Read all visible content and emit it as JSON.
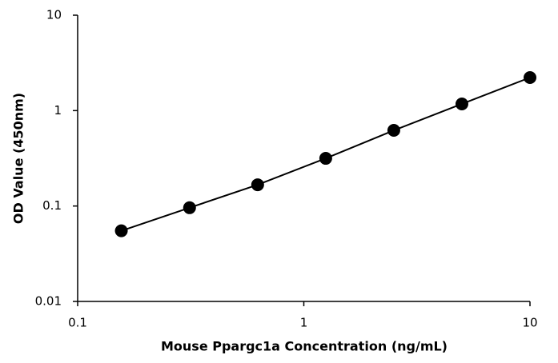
{
  "chart_data": {
    "type": "scatter",
    "x_label": "Mouse Ppargc1a Concentration (ng/mL)",
    "y_label": "OD Value (450nm)",
    "x": [
      0.156,
      0.3125,
      0.625,
      1.25,
      2.5,
      5,
      10
    ],
    "series": [
      {
        "color": "#000000",
        "values": [
          0.055,
          0.096,
          0.167,
          0.316,
          0.621,
          1.175,
          2.22
        ]
      }
    ],
    "connect": true,
    "xlim": [
      0.1,
      10
    ],
    "xticks": [
      0.1,
      1,
      10
    ],
    "xlog": true,
    "ylim": [
      0.01,
      10
    ],
    "yticks": [
      0.01,
      0.1,
      1,
      10
    ],
    "ylog": true,
    "grid": false
  }
}
